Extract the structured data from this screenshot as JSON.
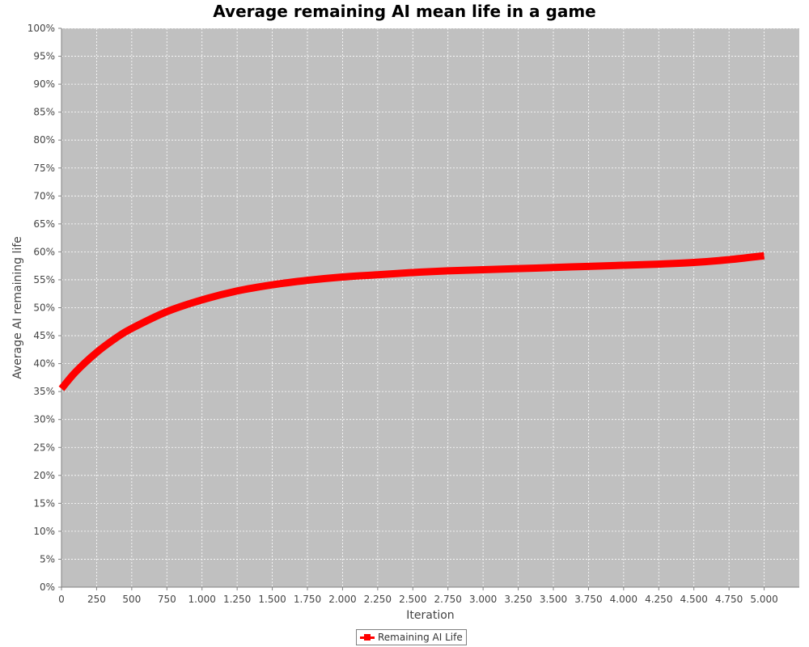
{
  "chart_data": {
    "type": "line",
    "title": "Average remaining AI mean life in a game",
    "xlabel": "Iteration",
    "ylabel": "Average AI remaining life",
    "xlim": [
      0,
      5250
    ],
    "ylim": [
      0,
      100
    ],
    "x_ticks": [
      0,
      250,
      500,
      750,
      1000,
      1250,
      1500,
      1750,
      2000,
      2250,
      2500,
      2750,
      3000,
      3250,
      3500,
      3750,
      4000,
      4250,
      4500,
      4750,
      5000
    ],
    "x_tick_labels": [
      "0",
      "250",
      "500",
      "750",
      "1.000",
      "1.250",
      "1.500",
      "1.750",
      "2.000",
      "2.250",
      "2.500",
      "2.750",
      "3.000",
      "3.250",
      "3.500",
      "3.750",
      "4.000",
      "4.250",
      "4.500",
      "4.750",
      "5.000"
    ],
    "y_ticks": [
      0,
      5,
      10,
      15,
      20,
      25,
      30,
      35,
      40,
      45,
      50,
      55,
      60,
      65,
      70,
      75,
      80,
      85,
      90,
      95,
      100
    ],
    "y_tick_labels": [
      "0%",
      "5%",
      "10%",
      "15%",
      "20%",
      "25%",
      "30%",
      "35%",
      "40%",
      "45%",
      "50%",
      "55%",
      "60%",
      "65%",
      "70%",
      "75%",
      "80%",
      "85%",
      "90%",
      "95%",
      "100%"
    ],
    "grid": true,
    "legend_position": "bottom-center",
    "background_color": "#c0c0c0",
    "series": [
      {
        "name": "Remaining AI Life",
        "color": "#ff0000",
        "x": [
          0,
          100,
          250,
          400,
          500,
          750,
          1000,
          1250,
          1500,
          1750,
          2000,
          2250,
          2500,
          2750,
          3000,
          3250,
          3500,
          3750,
          4000,
          4250,
          4500,
          4750,
          5000
        ],
        "y": [
          35.5,
          38.5,
          42.0,
          44.8,
          46.3,
          49.3,
          51.4,
          53.0,
          54.1,
          54.9,
          55.5,
          55.9,
          56.3,
          56.6,
          56.8,
          57.0,
          57.2,
          57.4,
          57.6,
          57.8,
          58.1,
          58.6,
          59.3
        ]
      }
    ]
  },
  "legend": {
    "label": "Remaining AI Life"
  }
}
